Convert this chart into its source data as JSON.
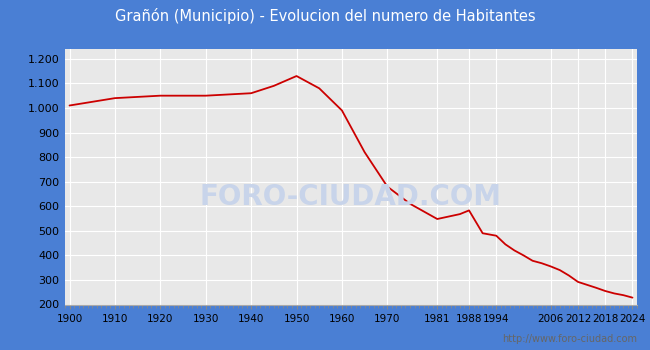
{
  "title": "Grañón (Municipio) - Evolucion del numero de Habitantes",
  "title_bg_color": "#4a7fd4",
  "title_text_color": "#ffffff",
  "outer_bg_color": "#4a7fd4",
  "inner_bg_color": "#f5f5f5",
  "plot_bg_color": "#e8e8e8",
  "line_color": "#cc0000",
  "watermark_text": "FORO-CIUDAD.COM",
  "watermark_color": "#c8d4ea",
  "footer_text": "http://www.foro-ciudad.com",
  "footer_color": "#666666",
  "years": [
    1900,
    1910,
    1920,
    1930,
    1940,
    1945,
    1950,
    1955,
    1960,
    1965,
    1970,
    1975,
    1981,
    1986,
    1988,
    1991,
    1994,
    1996,
    1998,
    2000,
    2002,
    2004,
    2006,
    2008,
    2010,
    2012,
    2014,
    2016,
    2018,
    2020,
    2022,
    2024
  ],
  "population": [
    1010,
    1040,
    1050,
    1050,
    1060,
    1090,
    1130,
    1080,
    990,
    820,
    680,
    610,
    548,
    568,
    583,
    490,
    480,
    445,
    420,
    400,
    378,
    368,
    355,
    340,
    318,
    292,
    280,
    268,
    255,
    245,
    238,
    228
  ],
  "xticks": [
    1900,
    1910,
    1920,
    1930,
    1940,
    1950,
    1960,
    1970,
    1981,
    1988,
    1994,
    2006,
    2012,
    2018,
    2024
  ],
  "yticks": [
    200,
    300,
    400,
    500,
    600,
    700,
    800,
    900,
    1000,
    1100,
    1200
  ],
  "xlim": [
    1899,
    2025
  ],
  "ylim": [
    200,
    1240
  ]
}
